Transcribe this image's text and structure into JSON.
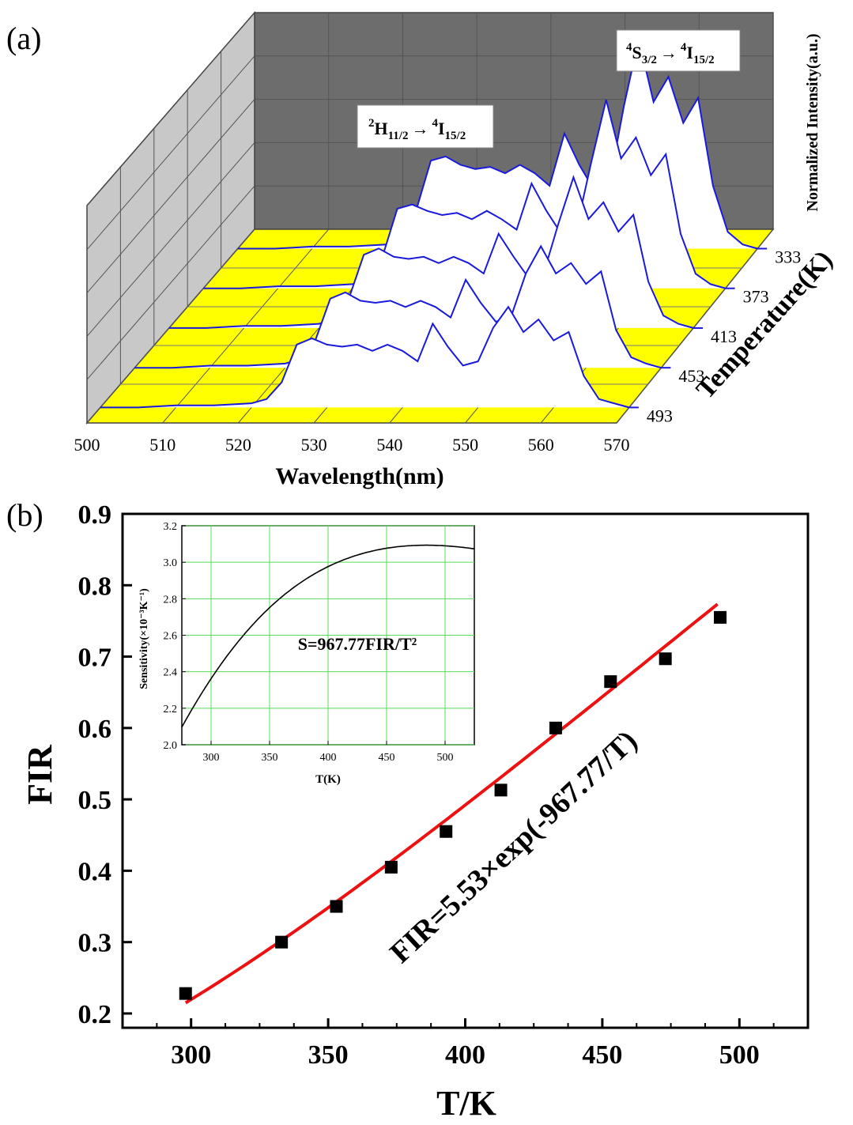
{
  "chart_data": [
    {
      "type": "area",
      "panel_label": "(a)",
      "xlabel": "Wavelength(nm)",
      "ylabel": "Normalized Intensity(a.u.)",
      "zlabel": "Temperature(K)",
      "xlim": [
        500,
        570
      ],
      "x_ticks": [
        "500",
        "510",
        "520",
        "530",
        "540",
        "550",
        "560",
        "570"
      ],
      "annotations": {
        "h_band": {
          "sup1": "2",
          "sym1": "H",
          "sub1": "11/2",
          "arrow": "→",
          "sup2": "4",
          "sym2": "I",
          "sub2": "15/2"
        },
        "s_band": {
          "sup1": "4",
          "sym1": "S",
          "sub1": "3/2",
          "arrow": "→",
          "sup2": "4",
          "sym2": "I",
          "sub2": "15/2"
        }
      },
      "x": [
        500,
        505,
        510,
        515,
        520,
        522,
        524,
        526,
        528,
        530,
        532,
        534,
        536,
        538,
        540,
        542,
        544,
        546,
        548,
        550,
        552,
        554,
        556,
        558,
        560,
        562,
        564,
        566,
        568,
        570
      ],
      "series": [
        {
          "name": "333",
          "values": [
            0.0,
            0.0,
            0.01,
            0.01,
            0.02,
            0.05,
            0.18,
            0.42,
            0.44,
            0.4,
            0.38,
            0.39,
            0.36,
            0.4,
            0.36,
            0.3,
            0.55,
            0.4,
            0.28,
            0.3,
            0.68,
            1.0,
            0.7,
            0.82,
            0.6,
            0.72,
            0.3,
            0.08,
            0.02,
            0.0
          ]
        },
        {
          "name": "373",
          "values": [
            0.0,
            0.0,
            0.01,
            0.01,
            0.02,
            0.04,
            0.15,
            0.38,
            0.4,
            0.37,
            0.35,
            0.36,
            0.33,
            0.37,
            0.33,
            0.28,
            0.5,
            0.37,
            0.26,
            0.28,
            0.6,
            0.9,
            0.62,
            0.72,
            0.54,
            0.64,
            0.26,
            0.07,
            0.02,
            0.0
          ]
        },
        {
          "name": "413",
          "values": [
            0.0,
            0.0,
            0.01,
            0.01,
            0.02,
            0.04,
            0.14,
            0.35,
            0.38,
            0.34,
            0.33,
            0.34,
            0.31,
            0.34,
            0.31,
            0.26,
            0.45,
            0.34,
            0.24,
            0.26,
            0.5,
            0.72,
            0.52,
            0.6,
            0.46,
            0.54,
            0.22,
            0.06,
            0.02,
            0.0
          ]
        },
        {
          "name": "453",
          "values": [
            0.0,
            0.0,
            0.01,
            0.01,
            0.02,
            0.04,
            0.13,
            0.33,
            0.36,
            0.32,
            0.31,
            0.32,
            0.29,
            0.32,
            0.29,
            0.24,
            0.42,
            0.31,
            0.22,
            0.24,
            0.45,
            0.58,
            0.45,
            0.5,
            0.4,
            0.46,
            0.18,
            0.05,
            0.02,
            0.0
          ]
        },
        {
          "name": "493",
          "values": [
            0.0,
            0.0,
            0.01,
            0.01,
            0.02,
            0.04,
            0.12,
            0.3,
            0.33,
            0.3,
            0.29,
            0.3,
            0.27,
            0.3,
            0.27,
            0.22,
            0.4,
            0.29,
            0.2,
            0.22,
            0.38,
            0.48,
            0.36,
            0.42,
            0.32,
            0.36,
            0.15,
            0.04,
            0.02,
            0.0
          ]
        }
      ]
    },
    {
      "type": "scatter",
      "panel_label": "(b)",
      "xlabel": "T/K",
      "ylabel": "FIR",
      "xlim": [
        275,
        525
      ],
      "ylim": [
        0.18,
        0.9
      ],
      "x_ticks": [
        "300",
        "350",
        "400",
        "450",
        "500"
      ],
      "y_ticks": [
        "0.2",
        "0.3",
        "0.4",
        "0.5",
        "0.6",
        "0.7",
        "0.8",
        "0.9"
      ],
      "points": [
        {
          "x": 298,
          "y": 0.228
        },
        {
          "x": 333,
          "y": 0.3
        },
        {
          "x": 353,
          "y": 0.35
        },
        {
          "x": 373,
          "y": 0.405
        },
        {
          "x": 393,
          "y": 0.455
        },
        {
          "x": 413,
          "y": 0.513
        },
        {
          "x": 433,
          "y": 0.6
        },
        {
          "x": 453,
          "y": 0.665
        },
        {
          "x": 473,
          "y": 0.697
        },
        {
          "x": 493,
          "y": 0.755
        }
      ],
      "fit": {
        "formula": "FIR=5.53×exp(-967.77/T)",
        "A": 5.53,
        "B": 967.77,
        "x_range": [
          298,
          493
        ],
        "color": "#ee1111"
      },
      "marker_color": "#000000"
    },
    {
      "type": "line",
      "role": "inset",
      "xlabel": "T(K)",
      "ylabel": "Sensitivity(×10⁻³K⁻¹)",
      "xlim": [
        275,
        525
      ],
      "ylim": [
        2.0,
        3.2
      ],
      "x_ticks": [
        "300",
        "350",
        "400",
        "450",
        "500"
      ],
      "y_ticks": [
        "2.0",
        "2.2",
        "2.4",
        "2.6",
        "2.8",
        "3.0",
        "3.2"
      ],
      "formula": "S=967.77FIR/T²",
      "grid": true,
      "grid_color": "#55dd55"
    }
  ]
}
